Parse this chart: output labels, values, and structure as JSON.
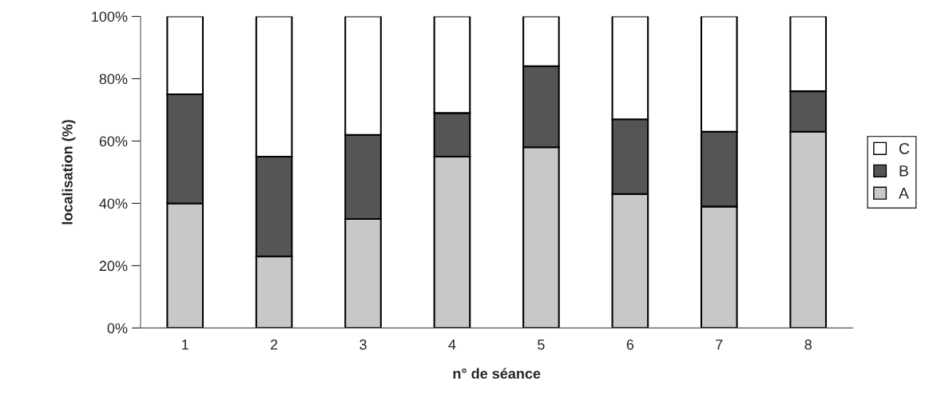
{
  "chart_data": {
    "type": "bar",
    "stacked": true,
    "xlabel": "n° de séance",
    "ylabel": "localisation (%)",
    "categories": [
      "1",
      "2",
      "3",
      "4",
      "5",
      "6",
      "7",
      "8"
    ],
    "series": [
      {
        "name": "A",
        "color": "#c8c8c8",
        "values": [
          40,
          23,
          35,
          55,
          58,
          43,
          39,
          63
        ]
      },
      {
        "name": "B",
        "color": "#555555",
        "values": [
          35,
          32,
          27,
          14,
          26,
          24,
          24,
          13
        ]
      },
      {
        "name": "C",
        "color": "#ffffff",
        "values": [
          25,
          45,
          38,
          31,
          16,
          33,
          37,
          24
        ]
      }
    ],
    "ylim": [
      0,
      100
    ],
    "yticks": [
      {
        "value": 0,
        "label": "0%"
      },
      {
        "value": 20,
        "label": "20%"
      },
      {
        "value": 40,
        "label": "40%"
      },
      {
        "value": 60,
        "label": "60%"
      },
      {
        "value": 80,
        "label": "80%"
      },
      {
        "value": 100,
        "label": "100%"
      }
    ],
    "grid": false,
    "legend": "right"
  }
}
